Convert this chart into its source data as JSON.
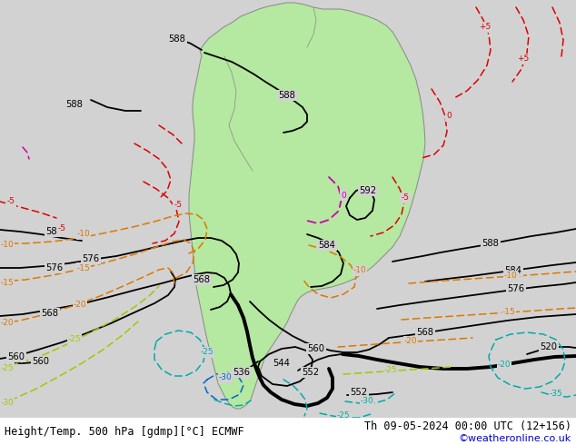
{
  "title_left": "Height/Temp. 500 hPa [gdmp][°C] ECMWF",
  "title_right": "Th 09-05-2024 00:00 UTC (12+156)",
  "credit": "©weatheronline.co.uk",
  "bg_color": "#d2d2d2",
  "land_color": "#b5e8a0",
  "land_border_color": "#888888",
  "bottom_bar_color": "#ffffff",
  "title_fontsize": 8.5,
  "credit_fontsize": 8,
  "credit_color": "#0000cc",
  "black_lw": 1.3,
  "thick_lw": 2.8,
  "temp_lw": 1.1,
  "label_fs": 7.2
}
